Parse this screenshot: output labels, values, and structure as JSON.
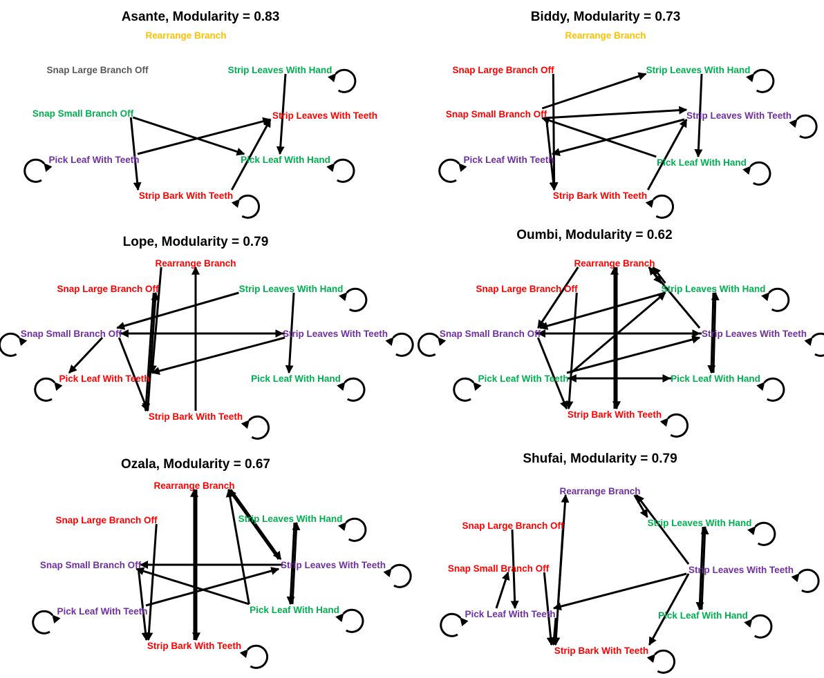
{
  "colors": {
    "red": "#ff0000",
    "green": "#00b050",
    "purple": "#7030a0",
    "gray": "#595959",
    "gold": "#ffc000"
  },
  "nodes": {
    "rb": "Rearrange Branch",
    "sl": "Snap Large Branch Off",
    "ss": "Snap Small Branch Off",
    "plt": "Pick Leaf With Teeth",
    "sbt": "Strip Bark With Teeth",
    "plh": "Pick Leaf With Hand",
    "slt": "Strip Leaves With Teeth",
    "slh": "Strip Leaves With Hand"
  },
  "panels": [
    {
      "title": "Asante, Modularity = 0.83",
      "node_colors": {
        "rb": "gold",
        "sl": "gray",
        "ss": "green",
        "plt": "purple",
        "sbt": "red",
        "plh": "green",
        "slt": "red",
        "slh": "green"
      },
      "loops": [
        "plt",
        "sbt",
        "plh",
        "slh"
      ],
      "edges": [
        [
          "plt",
          "slt"
        ],
        [
          "ss",
          "sbt"
        ],
        [
          "ss",
          "plh"
        ],
        [
          "sbt",
          "slt"
        ],
        [
          "slh",
          "plh"
        ]
      ]
    },
    {
      "title": "Biddy, Modularity = 0.73",
      "node_colors": {
        "rb": "gold",
        "sl": "red",
        "ss": "red",
        "plt": "purple",
        "sbt": "red",
        "plh": "green",
        "slt": "purple",
        "slh": "green"
      },
      "loops": [
        "plt",
        "sbt",
        "plh",
        "slt",
        "slh"
      ],
      "edges": [
        [
          "ss",
          "slh"
        ],
        [
          "ss",
          "slt"
        ],
        [
          "ss",
          "sbt"
        ],
        [
          "plh",
          "ss"
        ],
        [
          "slh",
          "plh"
        ],
        [
          "sl",
          "sbt"
        ],
        [
          "slt",
          "plt"
        ],
        [
          "sbt",
          "slt"
        ]
      ]
    },
    {
      "title": "Lope, Modularity = 0.79",
      "node_colors": {
        "rb": "red",
        "sl": "red",
        "ss": "purple",
        "plt": "red",
        "sbt": "red",
        "plh": "green",
        "slt": "purple",
        "slh": "green"
      },
      "loops": [
        "ss",
        "plt",
        "sbt",
        "plh",
        "slt",
        "slh"
      ],
      "edges": [
        [
          "slh",
          "ss"
        ],
        [
          "ss",
          "slt"
        ],
        [
          "slt",
          "ss"
        ],
        [
          "slh",
          "plh"
        ],
        [
          "sbt",
          "rb"
        ],
        [
          "rb",
          "plt"
        ],
        [
          "ss",
          "plt"
        ],
        [
          "ss",
          "sbt"
        ],
        [
          "slt",
          "plt"
        ],
        [
          "sl",
          "sbt"
        ],
        [
          "sbt",
          "sl"
        ]
      ]
    },
    {
      "title": "Oumbi, Modularity = 0.62",
      "node_colors": {
        "rb": "red",
        "sl": "red",
        "ss": "purple",
        "plt": "green",
        "sbt": "red",
        "plh": "green",
        "slt": "purple",
        "slh": "green"
      },
      "loops": [
        "ss",
        "plt",
        "sbt",
        "plh",
        "slt",
        "slh"
      ],
      "edges": [
        [
          "rb",
          "slh"
        ],
        [
          "rb",
          "ss"
        ],
        [
          "slh",
          "ss"
        ],
        [
          "ss",
          "slt"
        ],
        [
          "slt",
          "ss"
        ],
        [
          "slh",
          "rb"
        ],
        [
          "slt",
          "rb"
        ],
        [
          "sbt",
          "rb"
        ],
        [
          "rb",
          "sbt"
        ],
        [
          "plt",
          "plh"
        ],
        [
          "plh",
          "plt"
        ],
        [
          "plt",
          "slh"
        ],
        [
          "plt",
          "slt"
        ],
        [
          "ss",
          "sbt"
        ],
        [
          "sl",
          "sbt"
        ],
        [
          "slh",
          "plh"
        ],
        [
          "plh",
          "slh"
        ]
      ]
    },
    {
      "title": "Ozala, Modularity = 0.67",
      "node_colors": {
        "rb": "red",
        "sl": "red",
        "ss": "purple",
        "plt": "purple",
        "sbt": "red",
        "plh": "green",
        "slt": "purple",
        "slh": "green"
      },
      "loops": [
        "plt",
        "sbt",
        "plh",
        "slt",
        "slh"
      ],
      "edges": [
        [
          "slt",
          "rb"
        ],
        [
          "rb",
          "slt"
        ],
        [
          "slt",
          "ss"
        ],
        [
          "plh",
          "ss"
        ],
        [
          "sbt",
          "rb"
        ],
        [
          "rb",
          "sbt"
        ],
        [
          "plh",
          "rb"
        ],
        [
          "ss",
          "sbt"
        ],
        [
          "sl",
          "sbt"
        ],
        [
          "plt",
          "slt"
        ],
        [
          "slh",
          "plh"
        ],
        [
          "plh",
          "slh"
        ]
      ]
    },
    {
      "title": "Shufai, Modularity = 0.79",
      "node_colors": {
        "rb": "purple",
        "sl": "red",
        "ss": "red",
        "plt": "purple",
        "sbt": "red",
        "plh": "green",
        "slt": "purple",
        "slh": "green"
      },
      "loops": [
        "plt",
        "sbt",
        "plh",
        "slt",
        "slh"
      ],
      "edges": [
        [
          "rb",
          "slh"
        ],
        [
          "slt",
          "rb"
        ],
        [
          "plt",
          "rb"
        ],
        [
          "slt",
          "plt"
        ],
        [
          "slt",
          "sbt"
        ],
        [
          "sl",
          "plt"
        ],
        [
          "plt",
          "ss"
        ],
        [
          "plt",
          "sbt"
        ],
        [
          "sl",
          "sbt"
        ],
        [
          "ss",
          "sbt"
        ],
        [
          "slh",
          "plh"
        ],
        [
          "plh",
          "slh"
        ]
      ]
    }
  ]
}
